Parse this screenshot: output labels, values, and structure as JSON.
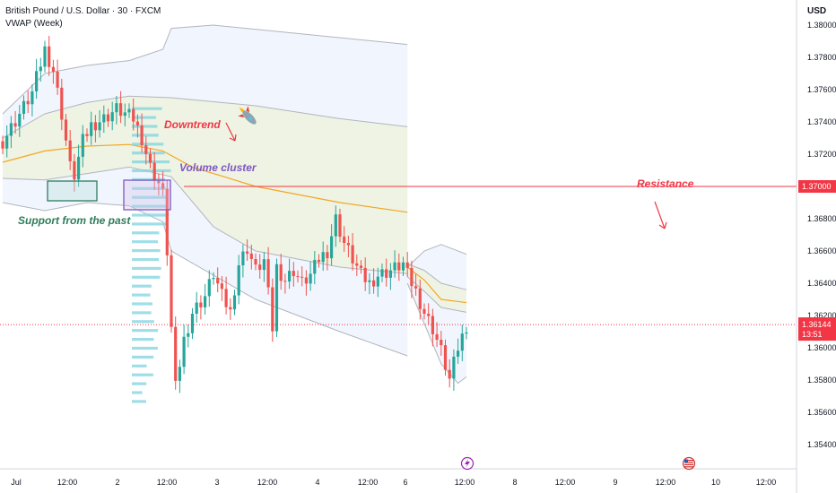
{
  "header": {
    "symbol": "British Pound / U.S. Dollar · 30 · FXCM",
    "indicator": "VWAP (Week)",
    "currency": "USD"
  },
  "colors": {
    "up": "#26a69a",
    "down": "#ef5350",
    "vwap": "#f5a623",
    "band": "#b2b5be",
    "resistance": "#f23645",
    "volume": "#7fd3df",
    "annotation_red": "#f23645",
    "annotation_purple": "#7e57c2",
    "annotation_green": "#2e7d5b"
  },
  "chart_data": {
    "type": "candlestick",
    "ylim": [
      1.354,
      1.3805
    ],
    "y_ticks": [
      "1.38000",
      "1.37800",
      "1.37600",
      "1.37400",
      "1.37200",
      "1.37000",
      "1.36800",
      "1.36600",
      "1.36400",
      "1.36200",
      "1.36000",
      "1.35800",
      "1.35600",
      "1.35400"
    ],
    "x_ticks": [
      "Jul",
      "12:00",
      "2",
      "12:00",
      "3",
      "12:00",
      "4",
      "12:00",
      "6",
      "12:00",
      "8",
      "12:00",
      "9",
      "12:00",
      "10",
      "12:00"
    ],
    "price_path": [
      [
        0,
        1.3728
      ],
      [
        4,
        1.3745
      ],
      [
        7,
        1.3758
      ],
      [
        10,
        1.3785
      ],
      [
        12,
        1.3772
      ],
      [
        14,
        1.3745
      ],
      [
        16,
        1.3712
      ],
      [
        17,
        1.3707
      ],
      [
        19,
        1.3728
      ],
      [
        21,
        1.3738
      ],
      [
        24,
        1.3742
      ],
      [
        27,
        1.3748
      ],
      [
        29,
        1.3745
      ],
      [
        31,
        1.3742
      ],
      [
        33,
        1.373
      ],
      [
        35,
        1.3712
      ],
      [
        37,
        1.3702
      ],
      [
        38,
        1.3695
      ],
      [
        39,
        1.366
      ],
      [
        40,
        1.3612
      ],
      [
        41,
        1.3575
      ],
      [
        43,
        1.3605
      ],
      [
        45,
        1.3622
      ],
      [
        48,
        1.3632
      ],
      [
        50,
        1.3646
      ],
      [
        52,
        1.3632
      ],
      [
        54,
        1.3622
      ],
      [
        56,
        1.3652
      ],
      [
        58,
        1.3662
      ],
      [
        60,
        1.3648
      ],
      [
        62,
        1.3654
      ],
      [
        64,
        1.3612
      ],
      [
        65,
        1.365
      ],
      [
        67,
        1.3642
      ],
      [
        69,
        1.3648
      ],
      [
        71,
        1.364
      ],
      [
        73,
        1.3645
      ],
      [
        75,
        1.3655
      ],
      [
        77,
        1.366
      ],
      [
        79,
        1.368
      ],
      [
        81,
        1.3665
      ],
      [
        83,
        1.3655
      ],
      [
        85,
        1.3645
      ],
      [
        87,
        1.364
      ],
      [
        89,
        1.3645
      ],
      [
        92,
        1.3648
      ],
      [
        95,
        1.3652
      ],
      [
        96,
        1.3645
      ],
      [
        98,
        1.3635
      ],
      [
        100,
        1.3622
      ],
      [
        102,
        1.3612
      ],
      [
        104,
        1.3598
      ],
      [
        106,
        1.358
      ],
      [
        108,
        1.36
      ],
      [
        110,
        1.3614
      ]
    ],
    "vwap": {
      "name": "VWAP (Week)"
    },
    "levels": [
      {
        "name": "Resistance",
        "value": 1.37,
        "label": "1.37000"
      }
    ],
    "last_price": {
      "value": 1.36144,
      "label": "1.36144",
      "countdown": "13:51"
    },
    "annotations": [
      {
        "text": "Downtrend",
        "color": "annotation_red"
      },
      {
        "text": "Volume cluster",
        "color": "annotation_purple"
      },
      {
        "text": "Support from the past",
        "color": "annotation_green"
      },
      {
        "text": "Resistance",
        "color": "annotation_red"
      }
    ]
  }
}
